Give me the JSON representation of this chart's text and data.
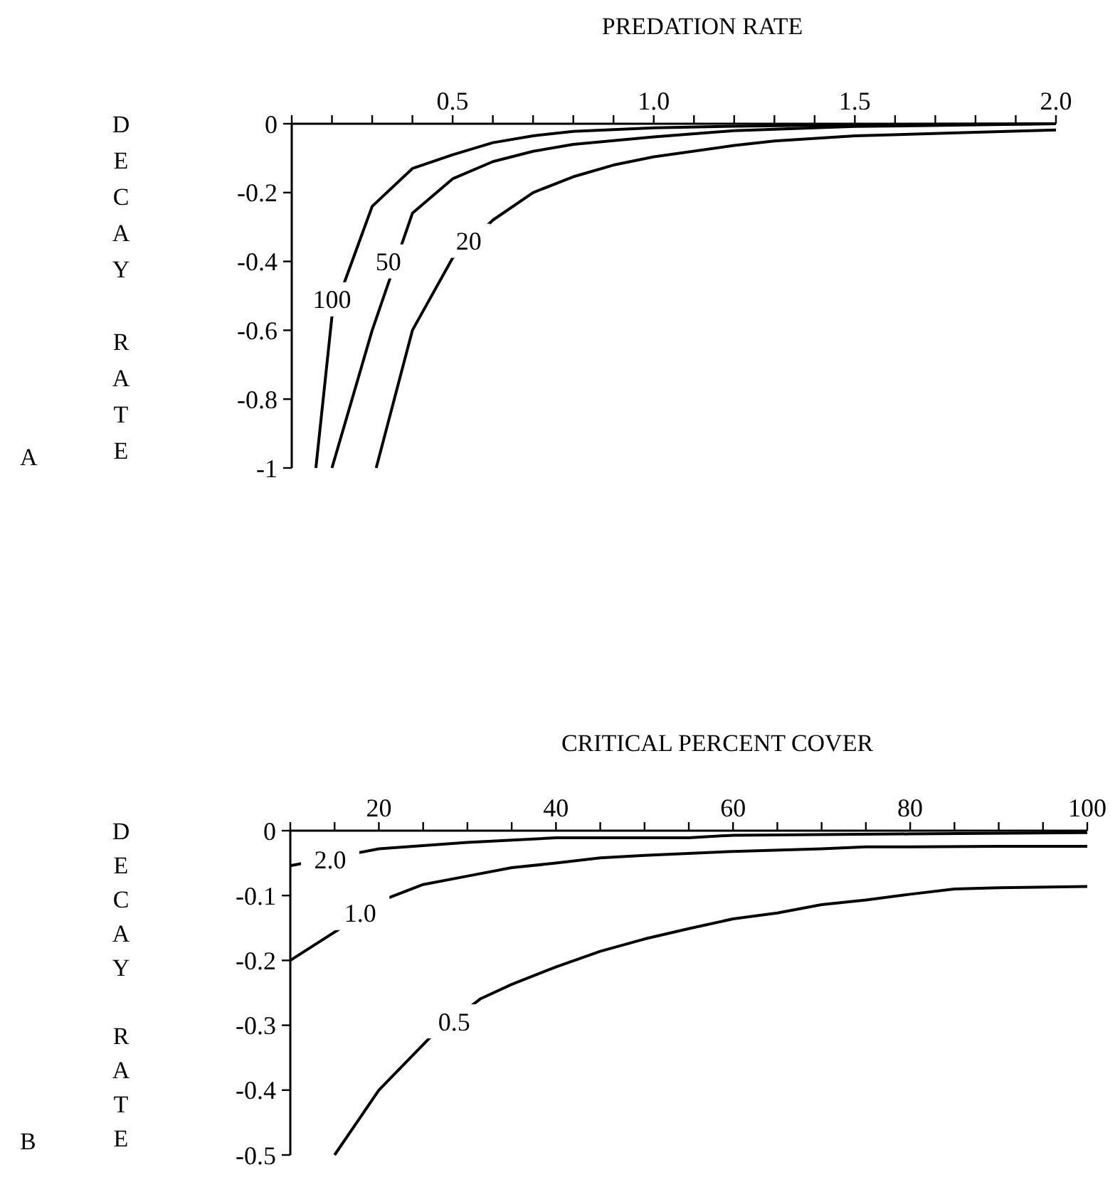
{
  "chart_data": [
    {
      "type": "line",
      "xlabel": "PREDATION RATE",
      "ylabel": "DECAY RATE",
      "xlim": [
        0.1,
        2.0
      ],
      "ylim": [
        -1,
        0
      ],
      "xticks": [
        {
          "value": 0.1,
          "label": null
        },
        {
          "value": 0.2,
          "label": null
        },
        {
          "value": 0.3,
          "label": null
        },
        {
          "value": 0.4,
          "label": null
        },
        {
          "value": 0.5,
          "label": "0.5"
        },
        {
          "value": 0.6,
          "label": null
        },
        {
          "value": 0.7,
          "label": null
        },
        {
          "value": 0.8,
          "label": null
        },
        {
          "value": 0.9,
          "label": null
        },
        {
          "value": 1.0,
          "label": "1.0"
        },
        {
          "value": 1.1,
          "label": null
        },
        {
          "value": 1.2,
          "label": null
        },
        {
          "value": 1.3,
          "label": null
        },
        {
          "value": 1.4,
          "label": null
        },
        {
          "value": 1.5,
          "label": "1.5"
        },
        {
          "value": 1.6,
          "label": null
        },
        {
          "value": 1.7,
          "label": null
        },
        {
          "value": 1.8,
          "label": null
        },
        {
          "value": 1.9,
          "label": null
        },
        {
          "value": 2.0,
          "label": "2.0"
        }
      ],
      "yticks": [
        0,
        -0.2,
        -0.4,
        -0.6,
        -0.8,
        -1
      ],
      "grid": false,
      "marker": "none",
      "line_style": "solid",
      "series": [
        {
          "color": "#000000",
          "x": [
            0.16,
            0.2,
            0.3,
            0.4,
            0.5,
            0.6,
            0.7,
            0.8,
            1.0,
            1.2,
            1.5,
            2.0
          ],
          "values": [
            -1,
            -0.56,
            -0.24,
            -0.13,
            -0.09,
            -0.055,
            -0.035,
            -0.022,
            -0.012,
            -0.007,
            -0.003,
            0
          ]
        },
        {
          "color": "#000000",
          "x": [
            0.2,
            0.3,
            0.4,
            0.5,
            0.6,
            0.7,
            0.8,
            1.0,
            1.2,
            1.5,
            2.0
          ],
          "values": [
            -1,
            -0.6,
            -0.26,
            -0.16,
            -0.11,
            -0.08,
            -0.06,
            -0.038,
            -0.02,
            -0.008,
            0
          ]
        },
        {
          "color": "#000000",
          "x": [
            0.31,
            0.4,
            0.5,
            0.6,
            0.7,
            0.8,
            0.9,
            1.0,
            1.2,
            1.3,
            1.5,
            1.8,
            2.0
          ],
          "values": [
            -1,
            -0.6,
            -0.39,
            -0.28,
            -0.2,
            -0.154,
            -0.12,
            -0.096,
            -0.063,
            -0.05,
            -0.035,
            -0.025,
            -0.018
          ]
        }
      ],
      "annotations": [
        {
          "text": "100",
          "x": 0.2,
          "y": -0.51
        },
        {
          "text": "50",
          "x": 0.34,
          "y": -0.4
        },
        {
          "text": "20",
          "x": 0.54,
          "y": -0.34
        },
        "A"
      ]
    },
    {
      "type": "line",
      "xlabel": "CRITICAL PERCENT COVER",
      "ylabel": "DECAY RATE",
      "xlim": [
        10,
        100
      ],
      "ylim": [
        -0.5,
        0
      ],
      "xticks": [
        {
          "value": 10,
          "label": null
        },
        {
          "value": 15,
          "label": null
        },
        20,
        {
          "value": 25,
          "label": null
        },
        {
          "value": 30,
          "label": null
        },
        {
          "value": 35,
          "label": null
        },
        40,
        {
          "value": 45,
          "label": null
        },
        {
          "value": 50,
          "label": null
        },
        {
          "value": 55,
          "label": null
        },
        60,
        {
          "value": 65,
          "label": null
        },
        {
          "value": 70,
          "label": null
        },
        {
          "value": 75,
          "label": null
        },
        80,
        {
          "value": 85,
          "label": null
        },
        {
          "value": 90,
          "label": null
        },
        {
          "value": 95,
          "label": null
        },
        100
      ],
      "yticks": [
        0,
        -0.1,
        -0.2,
        -0.3,
        -0.4,
        -0.5
      ],
      "grid": false,
      "marker": "none",
      "line_style": "solid",
      "series": [
        {
          "color": "#000000",
          "x": [
            10,
            20,
            30,
            40,
            50,
            55,
            60,
            80,
            100
          ],
          "values": [
            -0.054,
            -0.028,
            -0.018,
            -0.011,
            -0.011,
            -0.011,
            -0.007,
            -0.005,
            -0.003
          ]
        },
        {
          "color": "#000000",
          "x": [
            10,
            21,
            25,
            30,
            35,
            40,
            45,
            50,
            60,
            70,
            75,
            80,
            90,
            100
          ],
          "values": [
            -0.2,
            -0.104,
            -0.083,
            -0.07,
            -0.057,
            -0.05,
            -0.042,
            -0.038,
            -0.032,
            -0.028,
            -0.025,
            -0.025,
            -0.024,
            -0.024
          ]
        },
        {
          "color": "#000000",
          "x": [
            15,
            20,
            25.7,
            31.5,
            35,
            40,
            45,
            50,
            55,
            60,
            65,
            70,
            75,
            80,
            85,
            90,
            100
          ],
          "values": [
            -0.5,
            -0.4,
            -0.32,
            -0.259,
            -0.237,
            -0.21,
            -0.186,
            -0.167,
            -0.151,
            -0.136,
            -0.127,
            -0.114,
            -0.107,
            -0.098,
            -0.09,
            -0.088,
            -0.086
          ]
        }
      ],
      "annotations": [
        {
          "text": "2.0",
          "x": 14.5,
          "y": -0.044
        },
        {
          "text": "1.0",
          "x": 17.9,
          "y": -0.127
        },
        {
          "text": "0.5",
          "x": 28.5,
          "y": -0.294
        },
        "B"
      ]
    }
  ]
}
